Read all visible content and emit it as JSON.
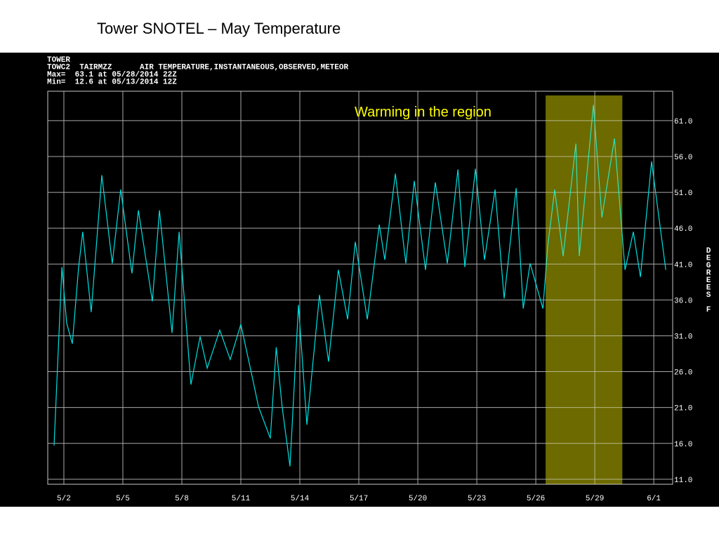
{
  "chart_data": {
    "type": "line",
    "title": "Tower SNOTEL – May Temperature",
    "header_lines": [
      "TOWER",
      "TOWC2  TAIRMZZ      AIR TEMPERATURE,INSTANTANEOUS,OBSERVED,METEOR",
      "Max=  63.1 at 05/28/2014 22Z",
      "Min=  12.6 at 05/13/2014 12Z"
    ],
    "y_label": "DEGREES F",
    "annotation": "Warming in the region",
    "highlight_x": [
      26.5,
      30.4
    ],
    "highlight_color": "#4d4a00",
    "annotation_color": "#ffff00",
    "grid": true,
    "xlim": [
      1.18,
      32.96
    ],
    "ylim": [
      10.3,
      65.1
    ],
    "xticks": [
      {
        "value": 2,
        "label": "5/2"
      },
      {
        "value": 5,
        "label": "5/5"
      },
      {
        "value": 8,
        "label": "5/8"
      },
      {
        "value": 11,
        "label": "5/11"
      },
      {
        "value": 14,
        "label": "5/14"
      },
      {
        "value": 17,
        "label": "5/17"
      },
      {
        "value": 20,
        "label": "5/20"
      },
      {
        "value": 23,
        "label": "5/23"
      },
      {
        "value": 26,
        "label": "5/26"
      },
      {
        "value": 29,
        "label": "5/29"
      },
      {
        "value": 32,
        "label": "6/1"
      }
    ],
    "yticks": [
      {
        "value": 11,
        "label": "11.0"
      },
      {
        "value": 16,
        "label": "16.0"
      },
      {
        "value": 21,
        "label": "21.0"
      },
      {
        "value": 26,
        "label": "26.0"
      },
      {
        "value": 31,
        "label": "31.0"
      },
      {
        "value": 36,
        "label": "36.0"
      },
      {
        "value": 41,
        "label": "41.0"
      },
      {
        "value": 46,
        "label": "46.0"
      },
      {
        "value": 51,
        "label": "51.0"
      },
      {
        "value": 56,
        "label": "56.0"
      },
      {
        "value": 61,
        "label": "61.0"
      }
    ],
    "series": [
      {
        "color": "#00e0e0",
        "x": [
          1.5,
          1.9,
          2.14,
          2.43,
          2.75,
          2.96,
          3.39,
          3.93,
          4.46,
          4.89,
          5.46,
          5.79,
          6.5,
          6.86,
          7.5,
          7.86,
          8.46,
          8.93,
          9.29,
          9.93,
          10.46,
          11,
          11.6,
          11.9,
          12.5,
          12.8,
          13.1,
          13.5,
          13.93,
          14.36,
          15,
          15.46,
          15.96,
          16.43,
          16.82,
          17.43,
          18.04,
          18.32,
          18.86,
          19.39,
          19.82,
          20.39,
          20.89,
          21.5,
          22.04,
          22.39,
          22.93,
          23.39,
          23.93,
          24.39,
          25,
          25.36,
          25.71,
          26.36,
          26.61,
          26.96,
          27.39,
          28.04,
          28.21,
          28.93,
          29.36,
          30,
          30.54,
          30.96,
          31.32,
          31.89,
          32.61
        ],
        "values": [
          15.7,
          40.6,
          32.8,
          29.9,
          40.6,
          45.5,
          34.3,
          53.4,
          41.1,
          51.4,
          39.7,
          48.5,
          35.8,
          48.5,
          31.4,
          45.5,
          24.2,
          30.9,
          26.5,
          31.8,
          27.7,
          32.6,
          25.0,
          21.1,
          16.7,
          29.4,
          21.1,
          12.8,
          35.3,
          18.6,
          36.7,
          27.4,
          40.2,
          33.3,
          44.1,
          33.3,
          46.5,
          41.6,
          53.6,
          41.1,
          52.6,
          40.2,
          52.4,
          41.1,
          54.2,
          40.6,
          54.3,
          41.6,
          51.4,
          36.2,
          51.6,
          34.8,
          41.1,
          34.8,
          43.6,
          51.4,
          42.1,
          57.8,
          42.1,
          63.2,
          47.5,
          58.5,
          40.2,
          45.5,
          39.2,
          55.3,
          40.2
        ]
      }
    ]
  }
}
